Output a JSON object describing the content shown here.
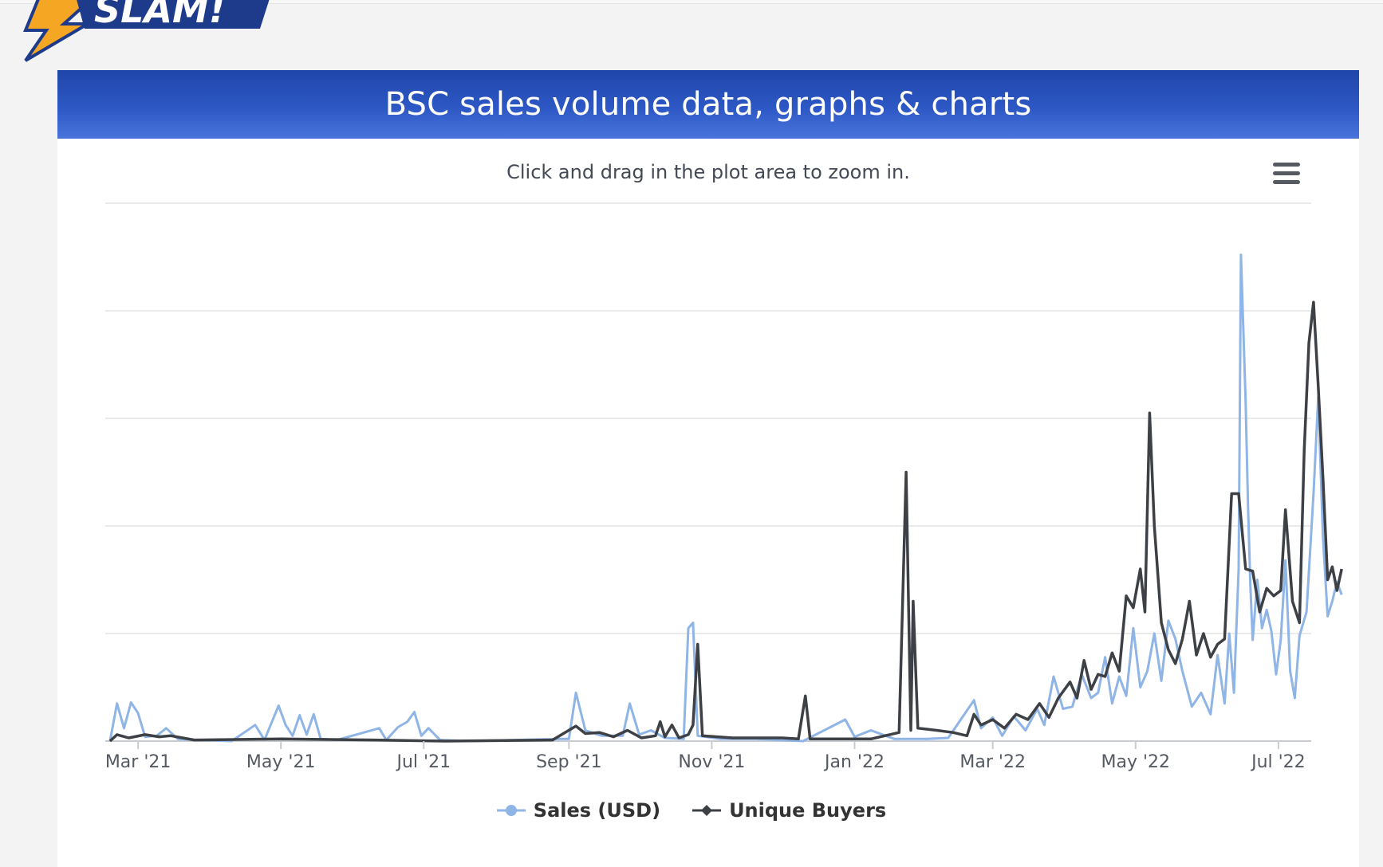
{
  "page": {
    "logo_text": "SLAM!",
    "chart_title": "BSC sales volume data, graphs & charts",
    "zoom_hint": "Click and drag in the plot area to zoom in."
  },
  "colors": {
    "header": "#2d57c4",
    "sales": "#8fb4e6",
    "buyers": "#3d4045",
    "grid": "#e4e4e4"
  },
  "icons": {
    "menu": "hamburger-icon",
    "logo": "lightning-bolt-icon"
  },
  "chart_data": {
    "type": "line",
    "x_axis": {
      "type": "datetime",
      "min": "2021-02-15",
      "max": "2022-07-15",
      "ticks": [
        {
          "date": "2021-03-01",
          "label": "Mar '21"
        },
        {
          "date": "2021-05-01",
          "label": "May '21"
        },
        {
          "date": "2021-07-01",
          "label": "Jul '21"
        },
        {
          "date": "2021-09-01",
          "label": "Sep '21"
        },
        {
          "date": "2021-11-01",
          "label": "Nov '21"
        },
        {
          "date": "2022-01-01",
          "label": "Jan '22"
        },
        {
          "date": "2022-03-01",
          "label": "Mar '22"
        },
        {
          "date": "2022-05-01",
          "label": "May '22"
        },
        {
          "date": "2022-07-01",
          "label": "Jul '22"
        }
      ]
    },
    "y_axis": {
      "min": 0,
      "max": 5,
      "gridlines": 5,
      "tick_labels_visible": false
    },
    "grid": true,
    "legend_position": "bottom-center",
    "series": [
      {
        "name": "Sales (USD)",
        "color": "#8fb4e6",
        "points": [
          [
            "2021-02-17",
            0.0
          ],
          [
            "2021-02-20",
            0.35
          ],
          [
            "2021-02-23",
            0.12
          ],
          [
            "2021-02-26",
            0.36
          ],
          [
            "2021-03-01",
            0.26
          ],
          [
            "2021-03-04",
            0.04
          ],
          [
            "2021-03-09",
            0.05
          ],
          [
            "2021-03-13",
            0.12
          ],
          [
            "2021-03-18",
            0.02
          ],
          [
            "2021-03-25",
            0.01
          ],
          [
            "2021-04-10",
            0.0
          ],
          [
            "2021-04-20",
            0.15
          ],
          [
            "2021-04-24",
            0.01
          ],
          [
            "2021-04-30",
            0.33
          ],
          [
            "2021-05-03",
            0.15
          ],
          [
            "2021-05-06",
            0.05
          ],
          [
            "2021-05-09",
            0.24
          ],
          [
            "2021-05-12",
            0.06
          ],
          [
            "2021-05-15",
            0.25
          ],
          [
            "2021-05-18",
            0.02
          ],
          [
            "2021-05-25",
            0.01
          ],
          [
            "2021-06-12",
            0.12
          ],
          [
            "2021-06-15",
            0.01
          ],
          [
            "2021-06-20",
            0.13
          ],
          [
            "2021-06-24",
            0.18
          ],
          [
            "2021-06-27",
            0.27
          ],
          [
            "2021-06-30",
            0.05
          ],
          [
            "2021-07-03",
            0.12
          ],
          [
            "2021-07-08",
            0.01
          ],
          [
            "2021-07-20",
            0.0
          ],
          [
            "2021-08-28",
            0.02
          ],
          [
            "2021-09-01",
            0.02
          ],
          [
            "2021-09-04",
            0.45
          ],
          [
            "2021-09-08",
            0.1
          ],
          [
            "2021-09-15",
            0.05
          ],
          [
            "2021-09-24",
            0.05
          ],
          [
            "2021-09-27",
            0.35
          ],
          [
            "2021-10-01",
            0.06
          ],
          [
            "2021-10-06",
            0.1
          ],
          [
            "2021-10-12",
            0.03
          ],
          [
            "2021-10-20",
            0.02
          ],
          [
            "2021-10-22",
            1.05
          ],
          [
            "2021-10-24",
            1.1
          ],
          [
            "2021-10-26",
            0.05
          ],
          [
            "2021-11-05",
            0.02
          ],
          [
            "2021-11-20",
            0.02
          ],
          [
            "2021-12-10",
            0.0
          ],
          [
            "2021-12-28",
            0.2
          ],
          [
            "2022-01-01",
            0.04
          ],
          [
            "2022-01-08",
            0.1
          ],
          [
            "2022-01-18",
            0.02
          ],
          [
            "2022-02-01",
            0.02
          ],
          [
            "2022-02-10",
            0.03
          ],
          [
            "2022-02-21",
            0.38
          ],
          [
            "2022-02-24",
            0.12
          ],
          [
            "2022-03-01",
            0.22
          ],
          [
            "2022-03-05",
            0.05
          ],
          [
            "2022-03-10",
            0.23
          ],
          [
            "2022-03-15",
            0.1
          ],
          [
            "2022-03-20",
            0.3
          ],
          [
            "2022-03-23",
            0.15
          ],
          [
            "2022-03-27",
            0.6
          ],
          [
            "2022-03-31",
            0.3
          ],
          [
            "2022-04-04",
            0.32
          ],
          [
            "2022-04-08",
            0.62
          ],
          [
            "2022-04-12",
            0.4
          ],
          [
            "2022-04-15",
            0.45
          ],
          [
            "2022-04-18",
            0.78
          ],
          [
            "2022-04-21",
            0.35
          ],
          [
            "2022-04-24",
            0.6
          ],
          [
            "2022-04-27",
            0.42
          ],
          [
            "2022-04-30",
            1.05
          ],
          [
            "2022-05-03",
            0.5
          ],
          [
            "2022-05-06",
            0.65
          ],
          [
            "2022-05-09",
            1.0
          ],
          [
            "2022-05-12",
            0.56
          ],
          [
            "2022-05-15",
            1.12
          ],
          [
            "2022-05-18",
            0.95
          ],
          [
            "2022-05-21",
            0.65
          ],
          [
            "2022-05-25",
            0.32
          ],
          [
            "2022-05-29",
            0.45
          ],
          [
            "2022-06-02",
            0.25
          ],
          [
            "2022-06-05",
            0.8
          ],
          [
            "2022-06-08",
            0.35
          ],
          [
            "2022-06-10",
            1.0
          ],
          [
            "2022-06-12",
            0.45
          ],
          [
            "2022-06-14",
            1.6
          ],
          [
            "2022-06-15",
            4.52
          ],
          [
            "2022-06-17",
            3.15
          ],
          [
            "2022-06-18",
            2.2
          ],
          [
            "2022-06-19",
            1.45
          ],
          [
            "2022-06-20",
            0.94
          ],
          [
            "2022-06-22",
            1.5
          ],
          [
            "2022-06-24",
            1.05
          ],
          [
            "2022-06-26",
            1.22
          ],
          [
            "2022-06-28",
            1.02
          ],
          [
            "2022-06-30",
            0.62
          ],
          [
            "2022-07-02",
            0.94
          ],
          [
            "2022-07-04",
            1.68
          ],
          [
            "2022-07-06",
            0.65
          ],
          [
            "2022-07-08",
            0.4
          ],
          [
            "2022-07-10",
            0.98
          ],
          [
            "2022-07-13",
            1.2
          ],
          [
            "2022-07-16",
            2.3
          ],
          [
            "2022-07-18",
            3.2
          ],
          [
            "2022-07-20",
            1.9
          ],
          [
            "2022-07-22",
            1.16
          ],
          [
            "2022-07-24",
            1.3
          ],
          [
            "2022-07-26",
            1.48
          ],
          [
            "2022-07-28",
            1.36
          ]
        ]
      },
      {
        "name": "Unique Buyers",
        "color": "#3d4045",
        "points": [
          [
            "2021-02-17",
            0.0
          ],
          [
            "2021-02-20",
            0.06
          ],
          [
            "2021-02-25",
            0.03
          ],
          [
            "2021-03-04",
            0.06
          ],
          [
            "2021-03-10",
            0.04
          ],
          [
            "2021-03-15",
            0.05
          ],
          [
            "2021-03-25",
            0.01
          ],
          [
            "2021-05-01",
            0.02
          ],
          [
            "2021-06-10",
            0.01
          ],
          [
            "2021-07-10",
            0.0
          ],
          [
            "2021-08-25",
            0.01
          ],
          [
            "2021-09-04",
            0.14
          ],
          [
            "2021-09-08",
            0.07
          ],
          [
            "2021-09-14",
            0.08
          ],
          [
            "2021-09-20",
            0.04
          ],
          [
            "2021-09-26",
            0.1
          ],
          [
            "2021-10-02",
            0.03
          ],
          [
            "2021-10-08",
            0.05
          ],
          [
            "2021-10-10",
            0.18
          ],
          [
            "2021-10-12",
            0.04
          ],
          [
            "2021-10-15",
            0.15
          ],
          [
            "2021-10-18",
            0.03
          ],
          [
            "2021-10-22",
            0.06
          ],
          [
            "2021-10-24",
            0.15
          ],
          [
            "2021-10-26",
            0.9
          ],
          [
            "2021-10-28",
            0.05
          ],
          [
            "2021-11-10",
            0.03
          ],
          [
            "2021-12-01",
            0.03
          ],
          [
            "2021-12-08",
            0.02
          ],
          [
            "2021-12-11",
            0.42
          ],
          [
            "2021-12-13",
            0.02
          ],
          [
            "2022-01-08",
            0.02
          ],
          [
            "2022-01-20",
            0.08
          ],
          [
            "2022-01-23",
            2.5
          ],
          [
            "2022-01-25",
            0.1
          ],
          [
            "2022-01-26",
            1.3
          ],
          [
            "2022-01-28",
            0.12
          ],
          [
            "2022-02-05",
            0.1
          ],
          [
            "2022-02-12",
            0.08
          ],
          [
            "2022-02-18",
            0.05
          ],
          [
            "2022-02-21",
            0.25
          ],
          [
            "2022-02-24",
            0.15
          ],
          [
            "2022-03-01",
            0.2
          ],
          [
            "2022-03-06",
            0.12
          ],
          [
            "2022-03-11",
            0.25
          ],
          [
            "2022-03-16",
            0.2
          ],
          [
            "2022-03-21",
            0.35
          ],
          [
            "2022-03-25",
            0.22
          ],
          [
            "2022-03-29",
            0.4
          ],
          [
            "2022-04-03",
            0.55
          ],
          [
            "2022-04-06",
            0.4
          ],
          [
            "2022-04-09",
            0.75
          ],
          [
            "2022-04-12",
            0.48
          ],
          [
            "2022-04-15",
            0.62
          ],
          [
            "2022-04-18",
            0.6
          ],
          [
            "2022-04-21",
            0.82
          ],
          [
            "2022-04-24",
            0.65
          ],
          [
            "2022-04-27",
            1.35
          ],
          [
            "2022-04-30",
            1.24
          ],
          [
            "2022-05-03",
            1.6
          ],
          [
            "2022-05-05",
            1.2
          ],
          [
            "2022-05-07",
            3.05
          ],
          [
            "2022-05-09",
            2.0
          ],
          [
            "2022-05-12",
            1.1
          ],
          [
            "2022-05-15",
            0.85
          ],
          [
            "2022-05-18",
            0.72
          ],
          [
            "2022-05-21",
            0.95
          ],
          [
            "2022-05-24",
            1.3
          ],
          [
            "2022-05-27",
            0.8
          ],
          [
            "2022-05-30",
            1.0
          ],
          [
            "2022-06-02",
            0.78
          ],
          [
            "2022-06-05",
            0.9
          ],
          [
            "2022-06-08",
            0.95
          ],
          [
            "2022-06-11",
            2.3
          ],
          [
            "2022-06-14",
            2.3
          ],
          [
            "2022-06-17",
            1.6
          ],
          [
            "2022-06-20",
            1.58
          ],
          [
            "2022-06-23",
            1.2
          ],
          [
            "2022-06-26",
            1.42
          ],
          [
            "2022-06-29",
            1.35
          ],
          [
            "2022-07-02",
            1.4
          ],
          [
            "2022-07-04",
            2.15
          ],
          [
            "2022-07-07",
            1.3
          ],
          [
            "2022-07-10",
            1.1
          ],
          [
            "2022-07-12",
            2.7
          ],
          [
            "2022-07-14",
            3.7
          ],
          [
            "2022-07-16",
            4.08
          ],
          [
            "2022-07-18",
            3.3
          ],
          [
            "2022-07-20",
            2.45
          ],
          [
            "2022-07-22",
            1.5
          ],
          [
            "2022-07-24",
            1.62
          ],
          [
            "2022-07-26",
            1.4
          ],
          [
            "2022-07-28",
            1.6
          ]
        ]
      }
    ]
  }
}
